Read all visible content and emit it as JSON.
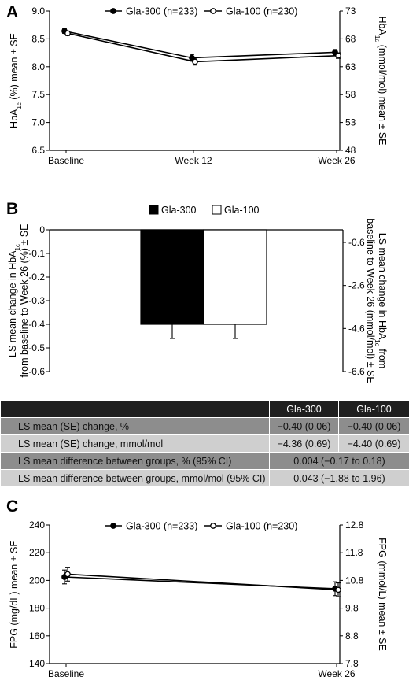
{
  "panels": {
    "a": {
      "letter": "A"
    },
    "b": {
      "letter": "B"
    },
    "c": {
      "letter": "C"
    }
  },
  "series_styles": {
    "gla300": {
      "color": "#000000",
      "marker": "filled-circle"
    },
    "gla100": {
      "color": "#000000",
      "marker": "open-circle"
    }
  },
  "chart_data": [
    {
      "id": "a",
      "type": "line",
      "categories": [
        "Baseline",
        "Week 12",
        "Week 26"
      ],
      "series": [
        {
          "name": "Gla-300 (n=233)",
          "values": [
            8.64,
            8.16,
            8.26
          ],
          "se": [
            0.04,
            0.06,
            0.05
          ]
        },
        {
          "name": "Gla-100 (n=230)",
          "values": [
            8.6,
            8.09,
            8.2
          ],
          "se": [
            0.04,
            0.06,
            0.05
          ]
        }
      ],
      "ylabel_main": "HbA",
      "ylabel_sub": "1c",
      "ylabel_rest": " (%) mean ± SE",
      "ylim": [
        6.5,
        9.0
      ],
      "yticks": [
        "6.5",
        "7.0",
        "7.5",
        "8.0",
        "8.5",
        "9.0"
      ],
      "y2label_main": "HbA",
      "y2label_sub": "1c",
      "y2label_rest": " (mmol/mol) mean ± SE",
      "y2ticks": [
        "48",
        "53",
        "58",
        "63",
        "68",
        "73"
      ],
      "y2tick_values": [
        48,
        53,
        58,
        63,
        68,
        73
      ],
      "legend_position": "top-center",
      "grid": false
    },
    {
      "id": "b",
      "type": "bar",
      "series": [
        {
          "name": "Gla-300",
          "value": -0.4,
          "se": 0.06,
          "fill": "#000000"
        },
        {
          "name": "Gla-100",
          "value": -0.4,
          "se": 0.06,
          "fill": "#ffffff"
        }
      ],
      "ylabel_line1_main": "LS mean change in HbA",
      "ylabel_line1_sub": "1c",
      "ylabel_line2": "from baseline to Week 26 (%) ± SE",
      "ylim": [
        -0.6,
        0
      ],
      "yticks": [
        "-0.6",
        "-0.5",
        "-0.4",
        "-0.3",
        "-0.2",
        "-0.1",
        "0"
      ],
      "y2label_line1_main": "LS mean change in HbA",
      "y2label_line1_sub": "1c",
      "y2label_line1_rest": " from",
      "y2label_line2": "baseline to Week 26 (mmol/mol) ± SE",
      "y2ticks": [
        "-0.6",
        "-2.6",
        "-4.6",
        "-6.6"
      ],
      "y2tick_values": [
        -0.6,
        -2.6,
        -4.6,
        -6.6
      ],
      "legend_position": "top-center",
      "grid": false
    },
    {
      "id": "c",
      "type": "line",
      "categories": [
        "Baseline",
        "Week 26"
      ],
      "series": [
        {
          "name": "Gla-300 (n=233)",
          "values": [
            202.5,
            194.0
          ],
          "se": [
            5.0,
            5.0
          ]
        },
        {
          "name": "Gla-100 (n=230)",
          "values": [
            204.5,
            193.2
          ],
          "se": [
            5.0,
            5.0
          ]
        }
      ],
      "ylabel": "FPG (mg/dL) mean ± SE",
      "ylim": [
        140,
        240
      ],
      "yticks": [
        "140",
        "160",
        "180",
        "200",
        "220",
        "240"
      ],
      "y2label": "FPG (mmol/L) mean ± SE",
      "y2ticks": [
        "7.8",
        "8.8",
        "9.8",
        "10.8",
        "11.8",
        "12.8"
      ],
      "y2tick_values": [
        7.8,
        8.8,
        9.8,
        10.8,
        11.8,
        12.8
      ],
      "legend_position": "top-center",
      "grid": false
    }
  ],
  "table": {
    "headers": [
      "",
      "Gla-300",
      "Gla-100"
    ],
    "rows": [
      {
        "label": "LS mean (SE) change, %",
        "cells": [
          "−0.40 (0.06)",
          "−0.40 (0.06)"
        ]
      },
      {
        "label": "LS mean (SE) change, mmol/mol",
        "cells": [
          "−4.36 (0.69)",
          "−4.40 (0.69)"
        ]
      },
      {
        "label": "LS mean difference between groups, % (95% CI)",
        "cells": [
          "0.004 (−0.17 to 0.18)"
        ]
      },
      {
        "label": "LS mean difference between groups, mmol/mol (95% CI)",
        "cells": [
          "0.043 (−1.88 to 1.96)"
        ]
      }
    ]
  }
}
